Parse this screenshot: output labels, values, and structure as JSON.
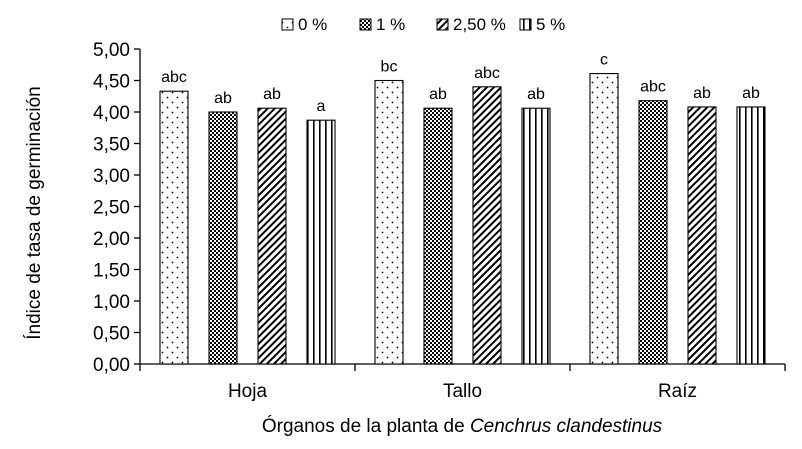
{
  "chart_data": {
    "type": "bar",
    "title": "",
    "xlabel_prefix": "Órganos de la planta de ",
    "xlabel_species": "Cenchrus clandestinus",
    "ylabel": "Índice de tasa de germinación",
    "ylim": [
      0,
      5
    ],
    "yticks": [
      "0,00",
      "0,50",
      "1,00",
      "1,50",
      "2,00",
      "2,50",
      "3,00",
      "3,50",
      "4,00",
      "4,50",
      "5,00"
    ],
    "categories": [
      "Hoja",
      "Tallo",
      "Raíz"
    ],
    "legend_position": "top-center",
    "grid": false,
    "series": [
      {
        "name": "0 %",
        "pattern": "dots",
        "values": [
          4.33,
          4.5,
          4.61
        ],
        "labels": [
          "abc",
          "bc",
          "c"
        ]
      },
      {
        "name": "1 %",
        "pattern": "checker",
        "values": [
          4.0,
          4.06,
          4.18
        ],
        "labels": [
          "ab",
          "ab",
          "abc"
        ]
      },
      {
        "name": "2,50 %",
        "pattern": "diagonal",
        "values": [
          4.06,
          4.4,
          4.08
        ],
        "labels": [
          "ab",
          "abc",
          "ab"
        ]
      },
      {
        "name": "5 %",
        "pattern": "vertical",
        "values": [
          3.87,
          4.06,
          4.08
        ],
        "labels": [
          "a",
          "ab",
          "ab"
        ]
      }
    ],
    "colors": {
      "bar_stroke": "#000000",
      "pattern_ink": "#000000",
      "background": "#ffffff"
    }
  }
}
